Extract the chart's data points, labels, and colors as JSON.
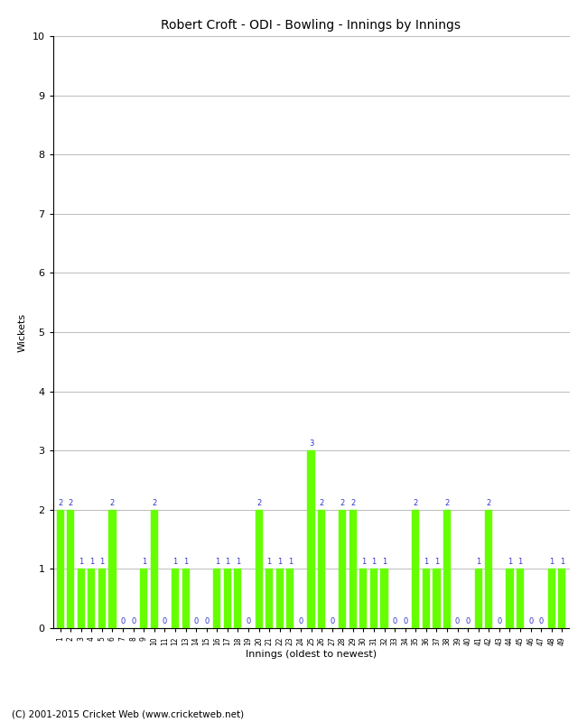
{
  "title": "Robert Croft - ODI - Bowling - Innings by Innings",
  "xlabel": "Innings (oldest to newest)",
  "ylabel": "Wickets",
  "ylim": [
    0,
    10
  ],
  "yticks": [
    0,
    1,
    2,
    3,
    4,
    5,
    6,
    7,
    8,
    9,
    10
  ],
  "bar_color": "#66ff00",
  "label_color": "#3333cc",
  "bg_color": "#ffffff",
  "grid_color": "#bbbbbb",
  "copyright": "(C) 2001-2015 Cricket Web (www.cricketweb.net)",
  "wickets": [
    2,
    2,
    1,
    1,
    1,
    2,
    0,
    0,
    1,
    2,
    0,
    1,
    1,
    0,
    0,
    1,
    1,
    1,
    0,
    2,
    1,
    1,
    1,
    0,
    3,
    2,
    0,
    2,
    2,
    1,
    1,
    1,
    0,
    0,
    2,
    1,
    1,
    2,
    0,
    0,
    1,
    2,
    0,
    1,
    1,
    0,
    0,
    1,
    1
  ]
}
